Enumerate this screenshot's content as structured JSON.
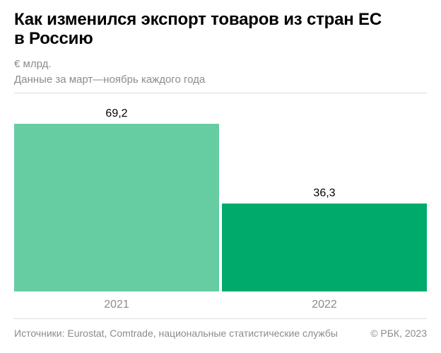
{
  "header": {
    "title_line1": "Как изменился экспорт товаров из стран ЕС",
    "title_line2": "в Россию",
    "unit": "€ млрд.",
    "note": "Данные за март—ноябрь каждого года"
  },
  "footer": {
    "source": "Источники: Eurostat, Comtrade, национальные статистические службы",
    "copyright": "© РБК, 2023"
  },
  "colors": {
    "bar_2021": "#66cda3",
    "bar_2022": "#00aa6a",
    "axis_label": "#8c8c8c"
  },
  "chart_data": {
    "type": "bar",
    "title": "Как изменился экспорт товаров из стран ЕС в Россию",
    "ylabel": "€ млрд.",
    "categories": [
      "2021",
      "2022"
    ],
    "values": [
      69.2,
      36.3
    ],
    "value_labels": [
      "69,2",
      "36,3"
    ],
    "ylim": [
      0,
      69.2
    ],
    "grid": false
  }
}
